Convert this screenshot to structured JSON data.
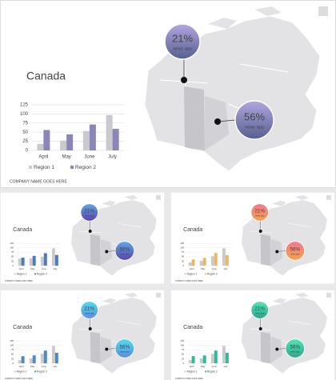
{
  "chart_data": [
    {
      "type": "bar",
      "title": "Canada",
      "categories": [
        "April",
        "May",
        "June",
        "July"
      ],
      "series": [
        {
          "name": "Region 1",
          "color": "#c9c9cf",
          "values": [
            18,
            27,
            53,
            97
          ]
        },
        {
          "name": "Region 2",
          "color": "#8a86b8",
          "values": [
            56,
            44,
            71,
            59
          ]
        }
      ],
      "ylim": [
        0,
        125
      ],
      "yticks": [
        0,
        25,
        50,
        75,
        100,
        125
      ],
      "grid": true,
      "callouts": [
        {
          "text": "21%",
          "caption": "news app",
          "colors": [
            "#b3a6e0",
            "#55608f"
          ]
        },
        {
          "text": "56%",
          "caption": "news app",
          "colors": [
            "#b3a6e0",
            "#55608f"
          ]
        }
      ],
      "footer": "COMPANY NAME GOES HERE"
    },
    {
      "type": "bar",
      "title": "Canada",
      "categories": [
        "April",
        "May",
        "June",
        "July"
      ],
      "series": [
        {
          "name": "Region 1",
          "color": "#c9c9cf",
          "values": [
            40,
            42,
            50,
            97
          ]
        },
        {
          "name": "Region 2",
          "color": "#4a7ac0",
          "values": [
            45,
            55,
            70,
            60
          ]
        }
      ],
      "ylim": [
        0,
        125
      ],
      "yticks": [
        0,
        25,
        50,
        75,
        100,
        125
      ],
      "grid": true,
      "callouts": [
        {
          "text": "21%",
          "caption": "news app",
          "colors": [
            "#5ea6e6",
            "#5b46a8"
          ]
        },
        {
          "text": "56%",
          "caption": "news app",
          "colors": [
            "#5ea6e6",
            "#5b46a8"
          ]
        }
      ],
      "footer": "COMPANY NAME GOES HERE"
    },
    {
      "type": "bar",
      "title": "Canada",
      "categories": [
        "April",
        "May",
        "June",
        "July"
      ],
      "series": [
        {
          "name": "Region 1",
          "color": "#c9c9cf",
          "values": [
            18,
            27,
            53,
            97
          ]
        },
        {
          "name": "Region 2",
          "color": "#e8b868",
          "values": [
            35,
            44,
            71,
            59
          ]
        }
      ],
      "ylim": [
        0,
        125
      ],
      "yticks": [
        0,
        25,
        50,
        75,
        100,
        125
      ],
      "grid": true,
      "callouts": [
        {
          "text": "21%",
          "caption": "news app",
          "colors": [
            "#f07890",
            "#f0a450"
          ]
        },
        {
          "text": "56%",
          "caption": "news app",
          "colors": [
            "#f07890",
            "#f0a450"
          ]
        }
      ],
      "footer": "COMPANY NAME GOES HERE"
    },
    {
      "type": "bar",
      "title": "Canada",
      "categories": [
        "April",
        "May",
        "June",
        "July"
      ],
      "series": [
        {
          "name": "Region 1",
          "color": "#c9c9cf",
          "values": [
            18,
            27,
            53,
            97
          ]
        },
        {
          "name": "Region 2",
          "color": "#4a88cc",
          "values": [
            40,
            44,
            71,
            59
          ]
        }
      ],
      "ylim": [
        0,
        125
      ],
      "yticks": [
        0,
        25,
        50,
        75,
        100,
        125
      ],
      "grid": true,
      "callouts": [
        {
          "text": "21%",
          "caption": "news app",
          "colors": [
            "#52dced",
            "#5a8ee2"
          ]
        },
        {
          "text": "56%",
          "caption": "news app",
          "colors": [
            "#52dced",
            "#5a8ee2"
          ]
        }
      ],
      "footer": "COMPANY NAME GOES HERE"
    },
    {
      "type": "bar",
      "title": "Canada",
      "categories": [
        "April",
        "May",
        "June",
        "July"
      ],
      "series": [
        {
          "name": "Region 1",
          "color": "#c9c9cf",
          "values": [
            18,
            27,
            53,
            97
          ]
        },
        {
          "name": "Region 2",
          "color": "#30b898",
          "values": [
            40,
            44,
            71,
            59
          ]
        }
      ],
      "ylim": [
        0,
        125
      ],
      "yticks": [
        0,
        25,
        50,
        75,
        100,
        125
      ],
      "grid": true,
      "callouts": [
        {
          "text": "21%",
          "caption": "news app",
          "colors": [
            "#56e4b4",
            "#2ea48e"
          ]
        },
        {
          "text": "56%",
          "caption": "news app",
          "colors": [
            "#56e4b4",
            "#2ea48e"
          ]
        }
      ],
      "footer": "COMPANY NAME GOES HERE"
    }
  ]
}
